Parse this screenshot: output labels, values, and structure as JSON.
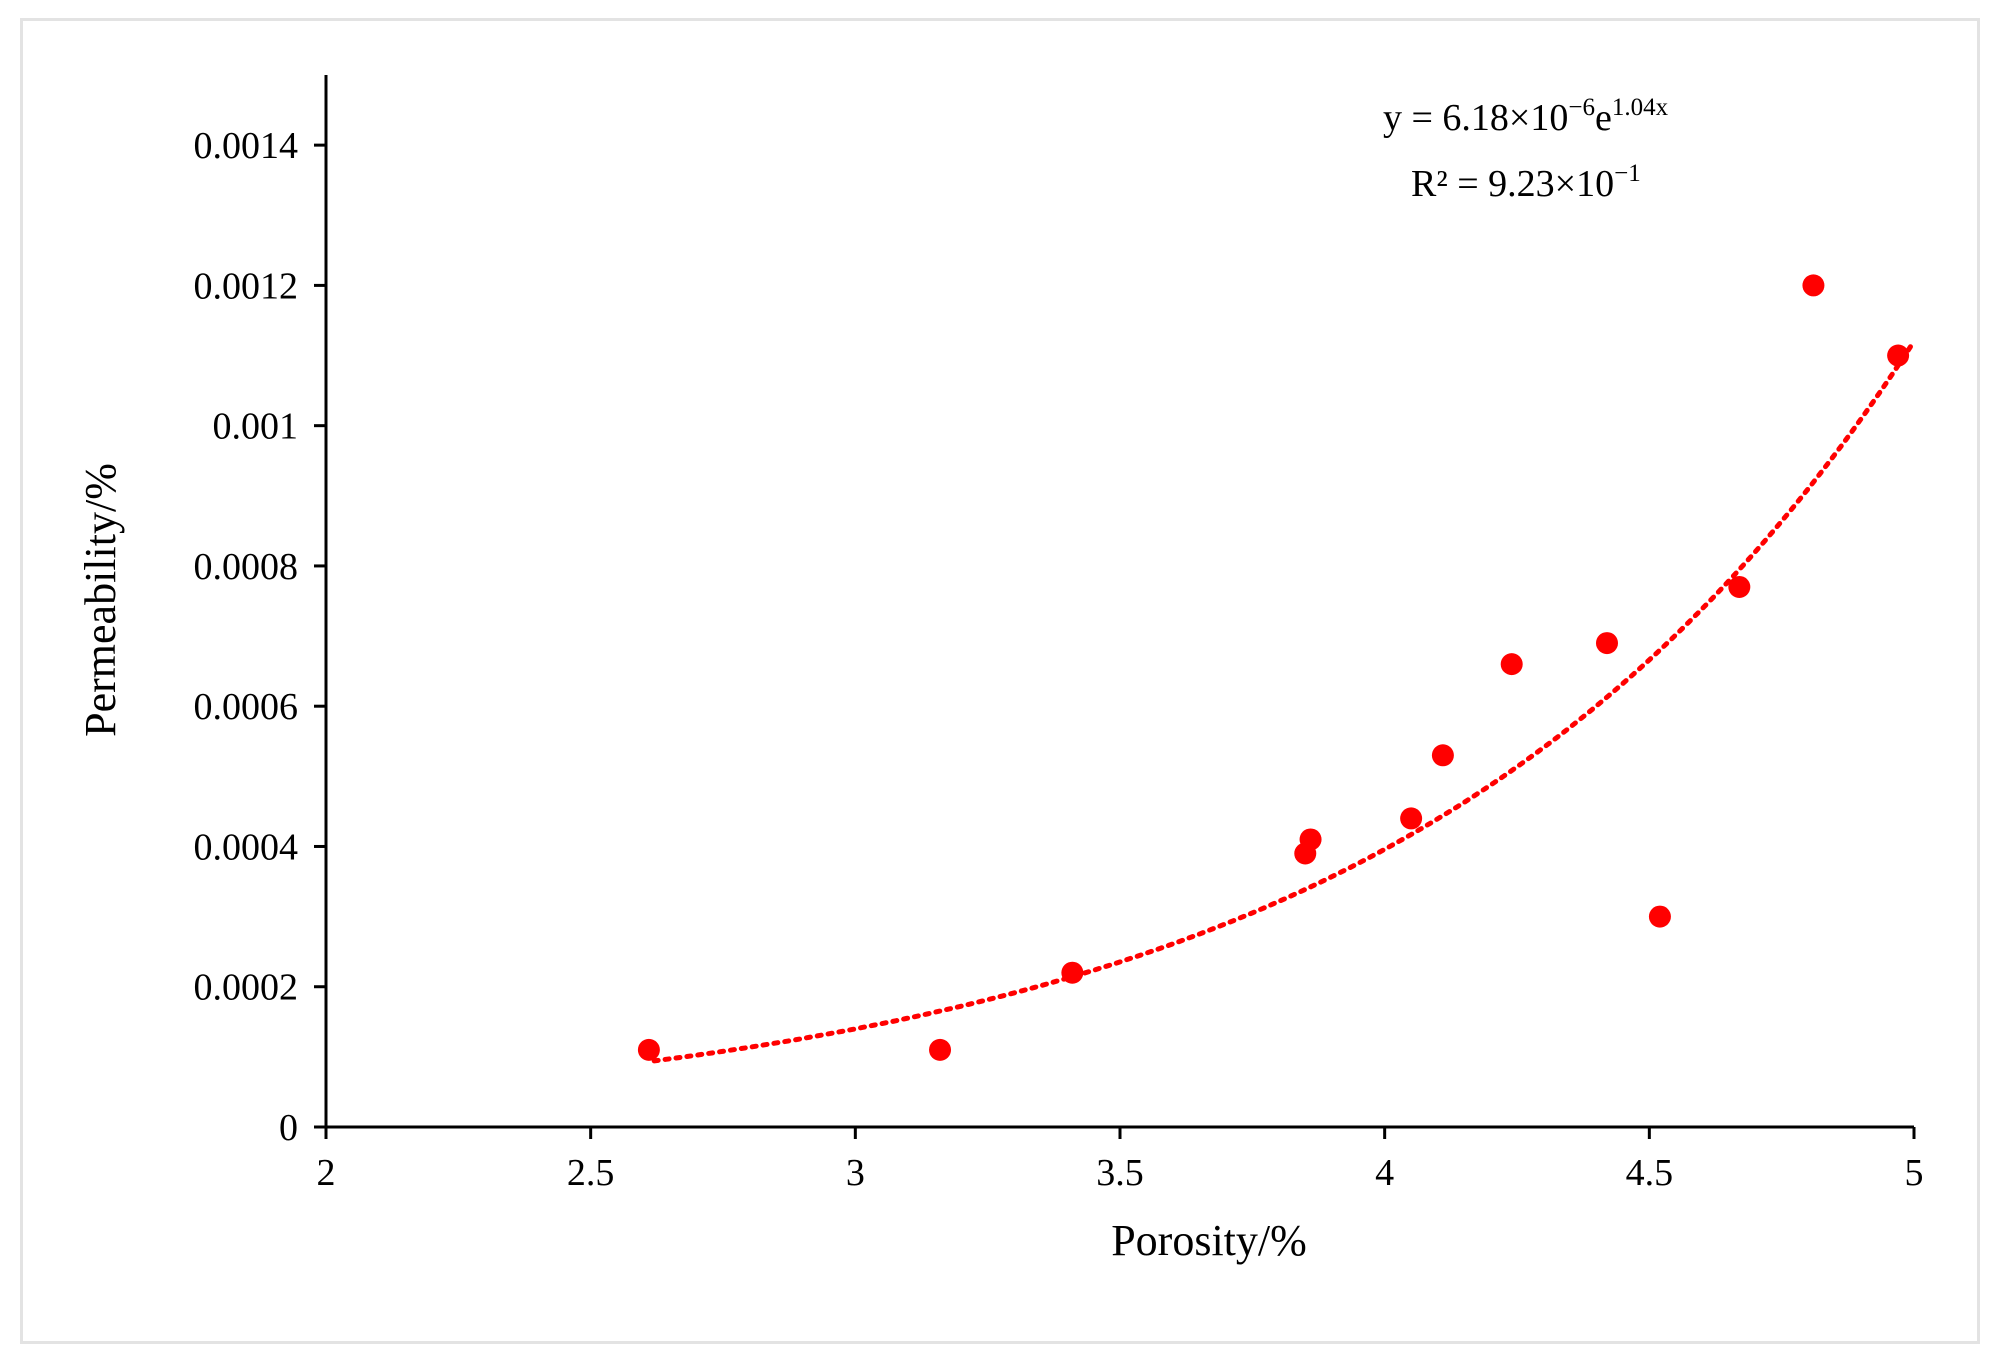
{
  "chart_data": {
    "type": "scatter",
    "title": "",
    "xlabel": "Porosity/%",
    "ylabel": "Permeability/%",
    "xlim": [
      2,
      5
    ],
    "ylim": [
      0,
      0.0015
    ],
    "x_ticks": [
      "2",
      "2.5",
      "3",
      "3.5",
      "4",
      "4.5",
      "5"
    ],
    "y_ticks": [
      "0",
      "0.0002",
      "0.0004",
      "0.0006",
      "0.0008",
      "0.001",
      "0.0012",
      "0.0014"
    ],
    "grid": false,
    "legend": "none",
    "series": [
      {
        "marker_color": "#ff0000",
        "points": [
          {
            "x": 2.61,
            "y": 0.00011
          },
          {
            "x": 3.16,
            "y": 0.00011
          },
          {
            "x": 3.41,
            "y": 0.00022
          },
          {
            "x": 3.85,
            "y": 0.00039
          },
          {
            "x": 3.86,
            "y": 0.00041
          },
          {
            "x": 4.05,
            "y": 0.00044
          },
          {
            "x": 4.11,
            "y": 0.00053
          },
          {
            "x": 4.24,
            "y": 0.00066
          },
          {
            "x": 4.42,
            "y": 0.00069
          },
          {
            "x": 4.52,
            "y": 0.0003
          },
          {
            "x": 4.67,
            "y": 0.00077
          },
          {
            "x": 4.81,
            "y": 0.0012
          },
          {
            "x": 4.97,
            "y": 0.0011
          }
        ]
      }
    ],
    "trendline": {
      "type": "exponential",
      "style": "dotted",
      "color": "#ff0000",
      "a": 6.18e-06,
      "b": 1.04,
      "x_range": [
        2.62,
        5
      ]
    },
    "annotations": {
      "equation": {
        "prefix": "y = 6.18×10",
        "exp1": "−6",
        "mid": "e",
        "exp2": "1.04x"
      },
      "r_squared": {
        "prefix": "R² = 9.23×10",
        "exp": "−1"
      }
    }
  }
}
